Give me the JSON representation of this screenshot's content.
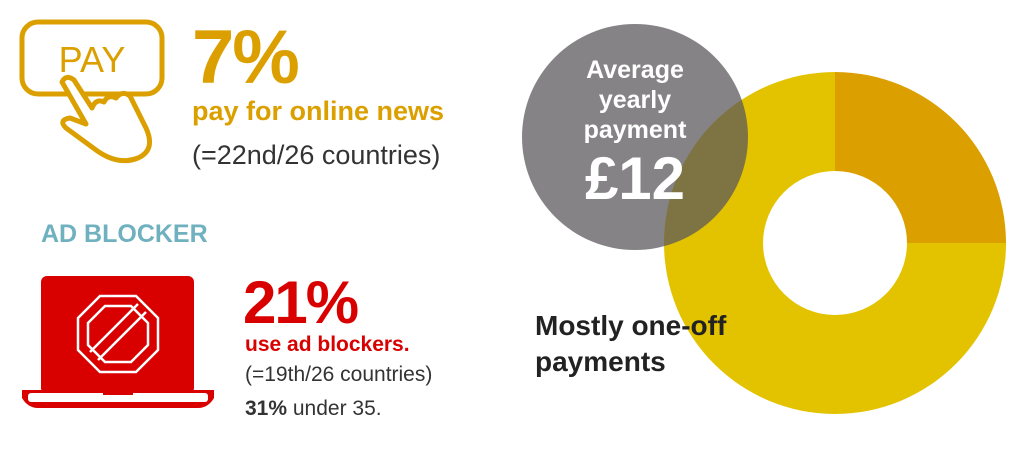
{
  "payment": {
    "icon_text": "PAY",
    "percent": "7%",
    "label": "pay for online news",
    "rank": "(=22nd/26 countries)"
  },
  "ad_blocker": {
    "title": "AD BLOCKER",
    "percent": "21%",
    "label": "use ad blockers.",
    "rank": "(=19th/26 countries)",
    "under35_value": "31%",
    "under35_text": " under 35."
  },
  "average": {
    "line1": "Average",
    "line2": "yearly",
    "line3": "payment",
    "amount": "£12"
  },
  "payment_type": {
    "line1": "Mostly one-off",
    "line2": "payments"
  },
  "chart_data": {
    "type": "pie",
    "donut": true,
    "values": [
      25,
      75
    ],
    "colors": [
      "#dba000",
      "#e3c300"
    ]
  },
  "colors": {
    "gold": "#dba000",
    "yellow": "#e3c300",
    "red": "#d90000",
    "teal": "#6fb1bf",
    "grey_circle": "#858385"
  }
}
